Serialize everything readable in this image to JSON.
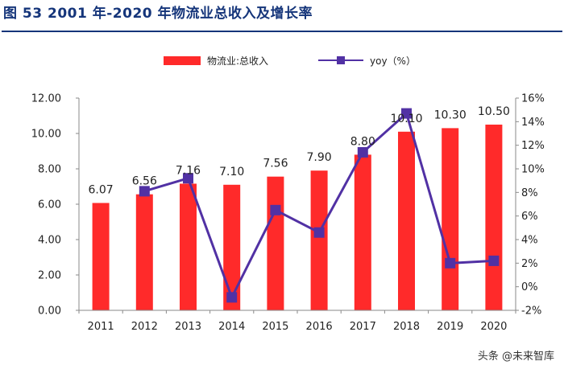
{
  "page": {
    "title": "图 53 2001 年-2020 年物流业总收入及增长率",
    "watermark": "头条 @未来智库"
  },
  "chart_data": {
    "type": "bar",
    "title": "图 53 2001 年-2020 年物流业总收入及增长率",
    "categories": [
      "2011",
      "2012",
      "2013",
      "2014",
      "2015",
      "2016",
      "2017",
      "2018",
      "2019",
      "2020"
    ],
    "series": [
      {
        "name": "物流业:总收入",
        "type": "bar",
        "axis": "left",
        "color": "#ff2a2a",
        "values": [
          6.07,
          6.56,
          7.16,
          7.1,
          7.56,
          7.9,
          8.8,
          10.1,
          10.3,
          10.5
        ],
        "labels": [
          "6.07",
          "6.56",
          "7.16",
          "7.10",
          "7.56",
          "7.90",
          "8.80",
          "10.10",
          "10.30",
          "10.50"
        ]
      },
      {
        "name": "yoy（%）",
        "type": "line",
        "axis": "right",
        "color": "#5131a4",
        "values": [
          null,
          8.1,
          9.2,
          -0.9,
          6.5,
          4.6,
          11.4,
          14.7,
          2.0,
          2.2
        ]
      }
    ],
    "y_left": {
      "lim": [
        0,
        12
      ],
      "ticks": [
        0,
        2,
        4,
        6,
        8,
        10,
        12
      ],
      "tick_labels": [
        "0.00",
        "2.00",
        "4.00",
        "6.00",
        "8.00",
        "10.00",
        "12.00"
      ]
    },
    "y_right": {
      "lim": [
        -2,
        16
      ],
      "ticks": [
        -2,
        0,
        2,
        4,
        6,
        8,
        10,
        12,
        14,
        16
      ],
      "tick_labels": [
        "-2%",
        "0%",
        "2%",
        "4%",
        "6%",
        "8%",
        "10%",
        "12%",
        "14%",
        "16%"
      ]
    },
    "legend_position": "top-center",
    "grid": false
  }
}
